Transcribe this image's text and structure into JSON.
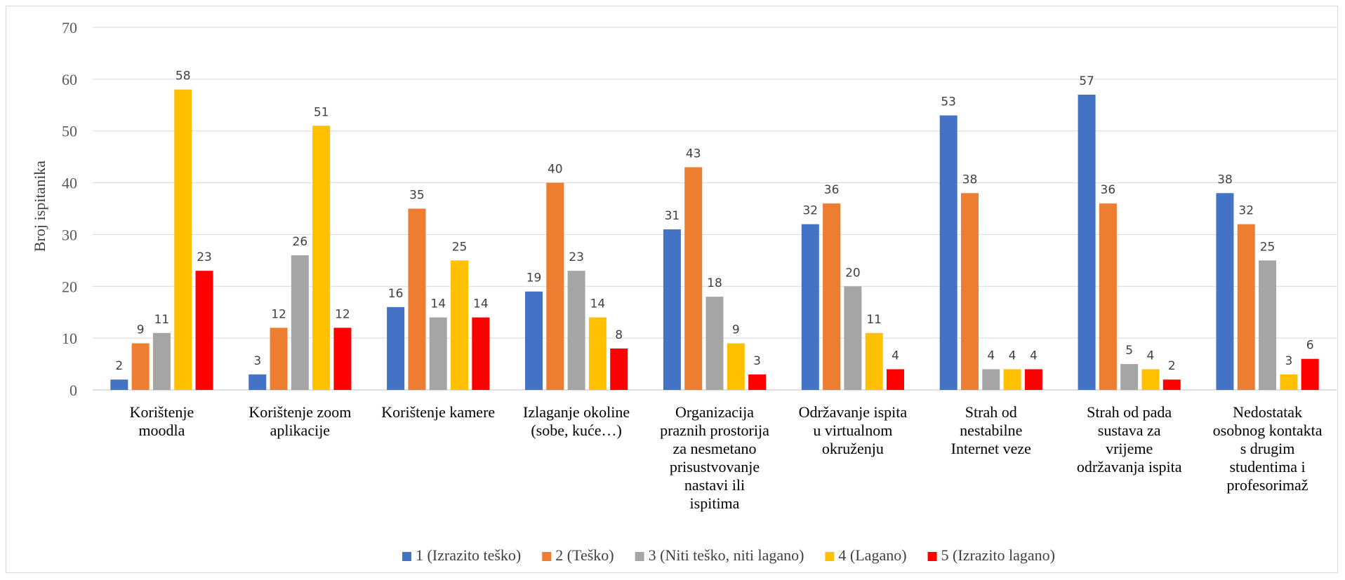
{
  "chart_data": {
    "type": "bar",
    "title": "",
    "xlabel": "",
    "ylabel": "Broj ispitanika",
    "ylim": [
      0,
      70
    ],
    "yticks": [
      0,
      10,
      20,
      30,
      40,
      50,
      60,
      70
    ],
    "grid": true,
    "legend_position": "bottom",
    "categories": [
      [
        "Korištenje",
        "moodla"
      ],
      [
        "Korištenje zoom",
        "aplikacije"
      ],
      [
        "Korištenje kamere"
      ],
      [
        "Izlaganje okoline",
        "(sobe, kuće…)"
      ],
      [
        "Organizacija",
        "praznih prostorija",
        "za nesmetano",
        "prisustvovanje",
        "nastavi ili",
        "ispitima"
      ],
      [
        "Održavanje ispita",
        "u virtualnom",
        "okruženju"
      ],
      [
        "Strah od",
        "nestabilne",
        "Internet veze"
      ],
      [
        "Strah od pada",
        "sustava za",
        "vrijeme",
        "održavanja ispita"
      ],
      [
        "Nedostatak",
        "osobnog kontakta",
        "s drugim",
        "studentima i",
        "profesorimaž"
      ]
    ],
    "series": [
      {
        "name": "1 (Izrazito teško)",
        "color": "#4472c4",
        "values": [
          2,
          3,
          16,
          19,
          31,
          32,
          53,
          57,
          38
        ]
      },
      {
        "name": "2 (Teško)",
        "color": "#ed7d31",
        "values": [
          9,
          12,
          35,
          40,
          43,
          36,
          38,
          36,
          32
        ]
      },
      {
        "name": "3 (Niti teško, niti lagano)",
        "color": "#a5a5a5",
        "values": [
          11,
          26,
          14,
          23,
          18,
          20,
          4,
          5,
          25
        ]
      },
      {
        "name": "4 (Lagano)",
        "color": "#ffc000",
        "values": [
          58,
          51,
          25,
          14,
          9,
          11,
          4,
          4,
          3
        ]
      },
      {
        "name": "5 (Izrazito lagano)",
        "color": "#ff0000",
        "values": [
          23,
          12,
          14,
          8,
          3,
          4,
          4,
          2,
          6
        ]
      }
    ]
  }
}
